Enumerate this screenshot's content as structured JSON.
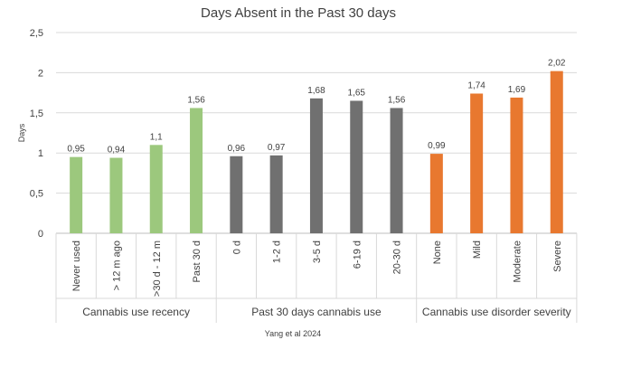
{
  "chart_data": {
    "type": "bar",
    "title": "Days Absent in the Past 30 days",
    "xlabel": "",
    "ylabel": "Days",
    "ylim": [
      0,
      2.5
    ],
    "yticks": [
      "0",
      "0,5",
      "1",
      "1,5",
      "2",
      "2,5"
    ],
    "grid": true,
    "legend": "none",
    "source_note": "Yang et al 2024",
    "groups": [
      {
        "name": "Cannabis use recency",
        "color": "#9CC87D",
        "categories": [
          "Never used",
          "> 12 m ago",
          ">30 d - 12 m",
          "Past 30 d"
        ],
        "values": [
          0.95,
          0.94,
          1.1,
          1.56
        ],
        "labels": [
          "0,95",
          "0,94",
          "1,1",
          "1,56"
        ]
      },
      {
        "name": "Past 30 days cannabis use",
        "color": "#707070",
        "categories": [
          "0 d",
          "1-2 d",
          "3-5 d",
          "6-19 d",
          "20-30 d"
        ],
        "values": [
          0.96,
          0.97,
          1.68,
          1.65,
          1.56
        ],
        "labels": [
          "0,96",
          "0,97",
          "1,68",
          "1,65",
          "1,56"
        ]
      },
      {
        "name": "Cannabis use disorder severity",
        "color": "#E8782F",
        "categories": [
          "None",
          "Mild",
          "Moderate",
          "Severe"
        ],
        "values": [
          0.99,
          1.74,
          1.69,
          2.02
        ],
        "labels": [
          "0,99",
          "1,74",
          "1,69",
          "2,02"
        ]
      }
    ]
  }
}
